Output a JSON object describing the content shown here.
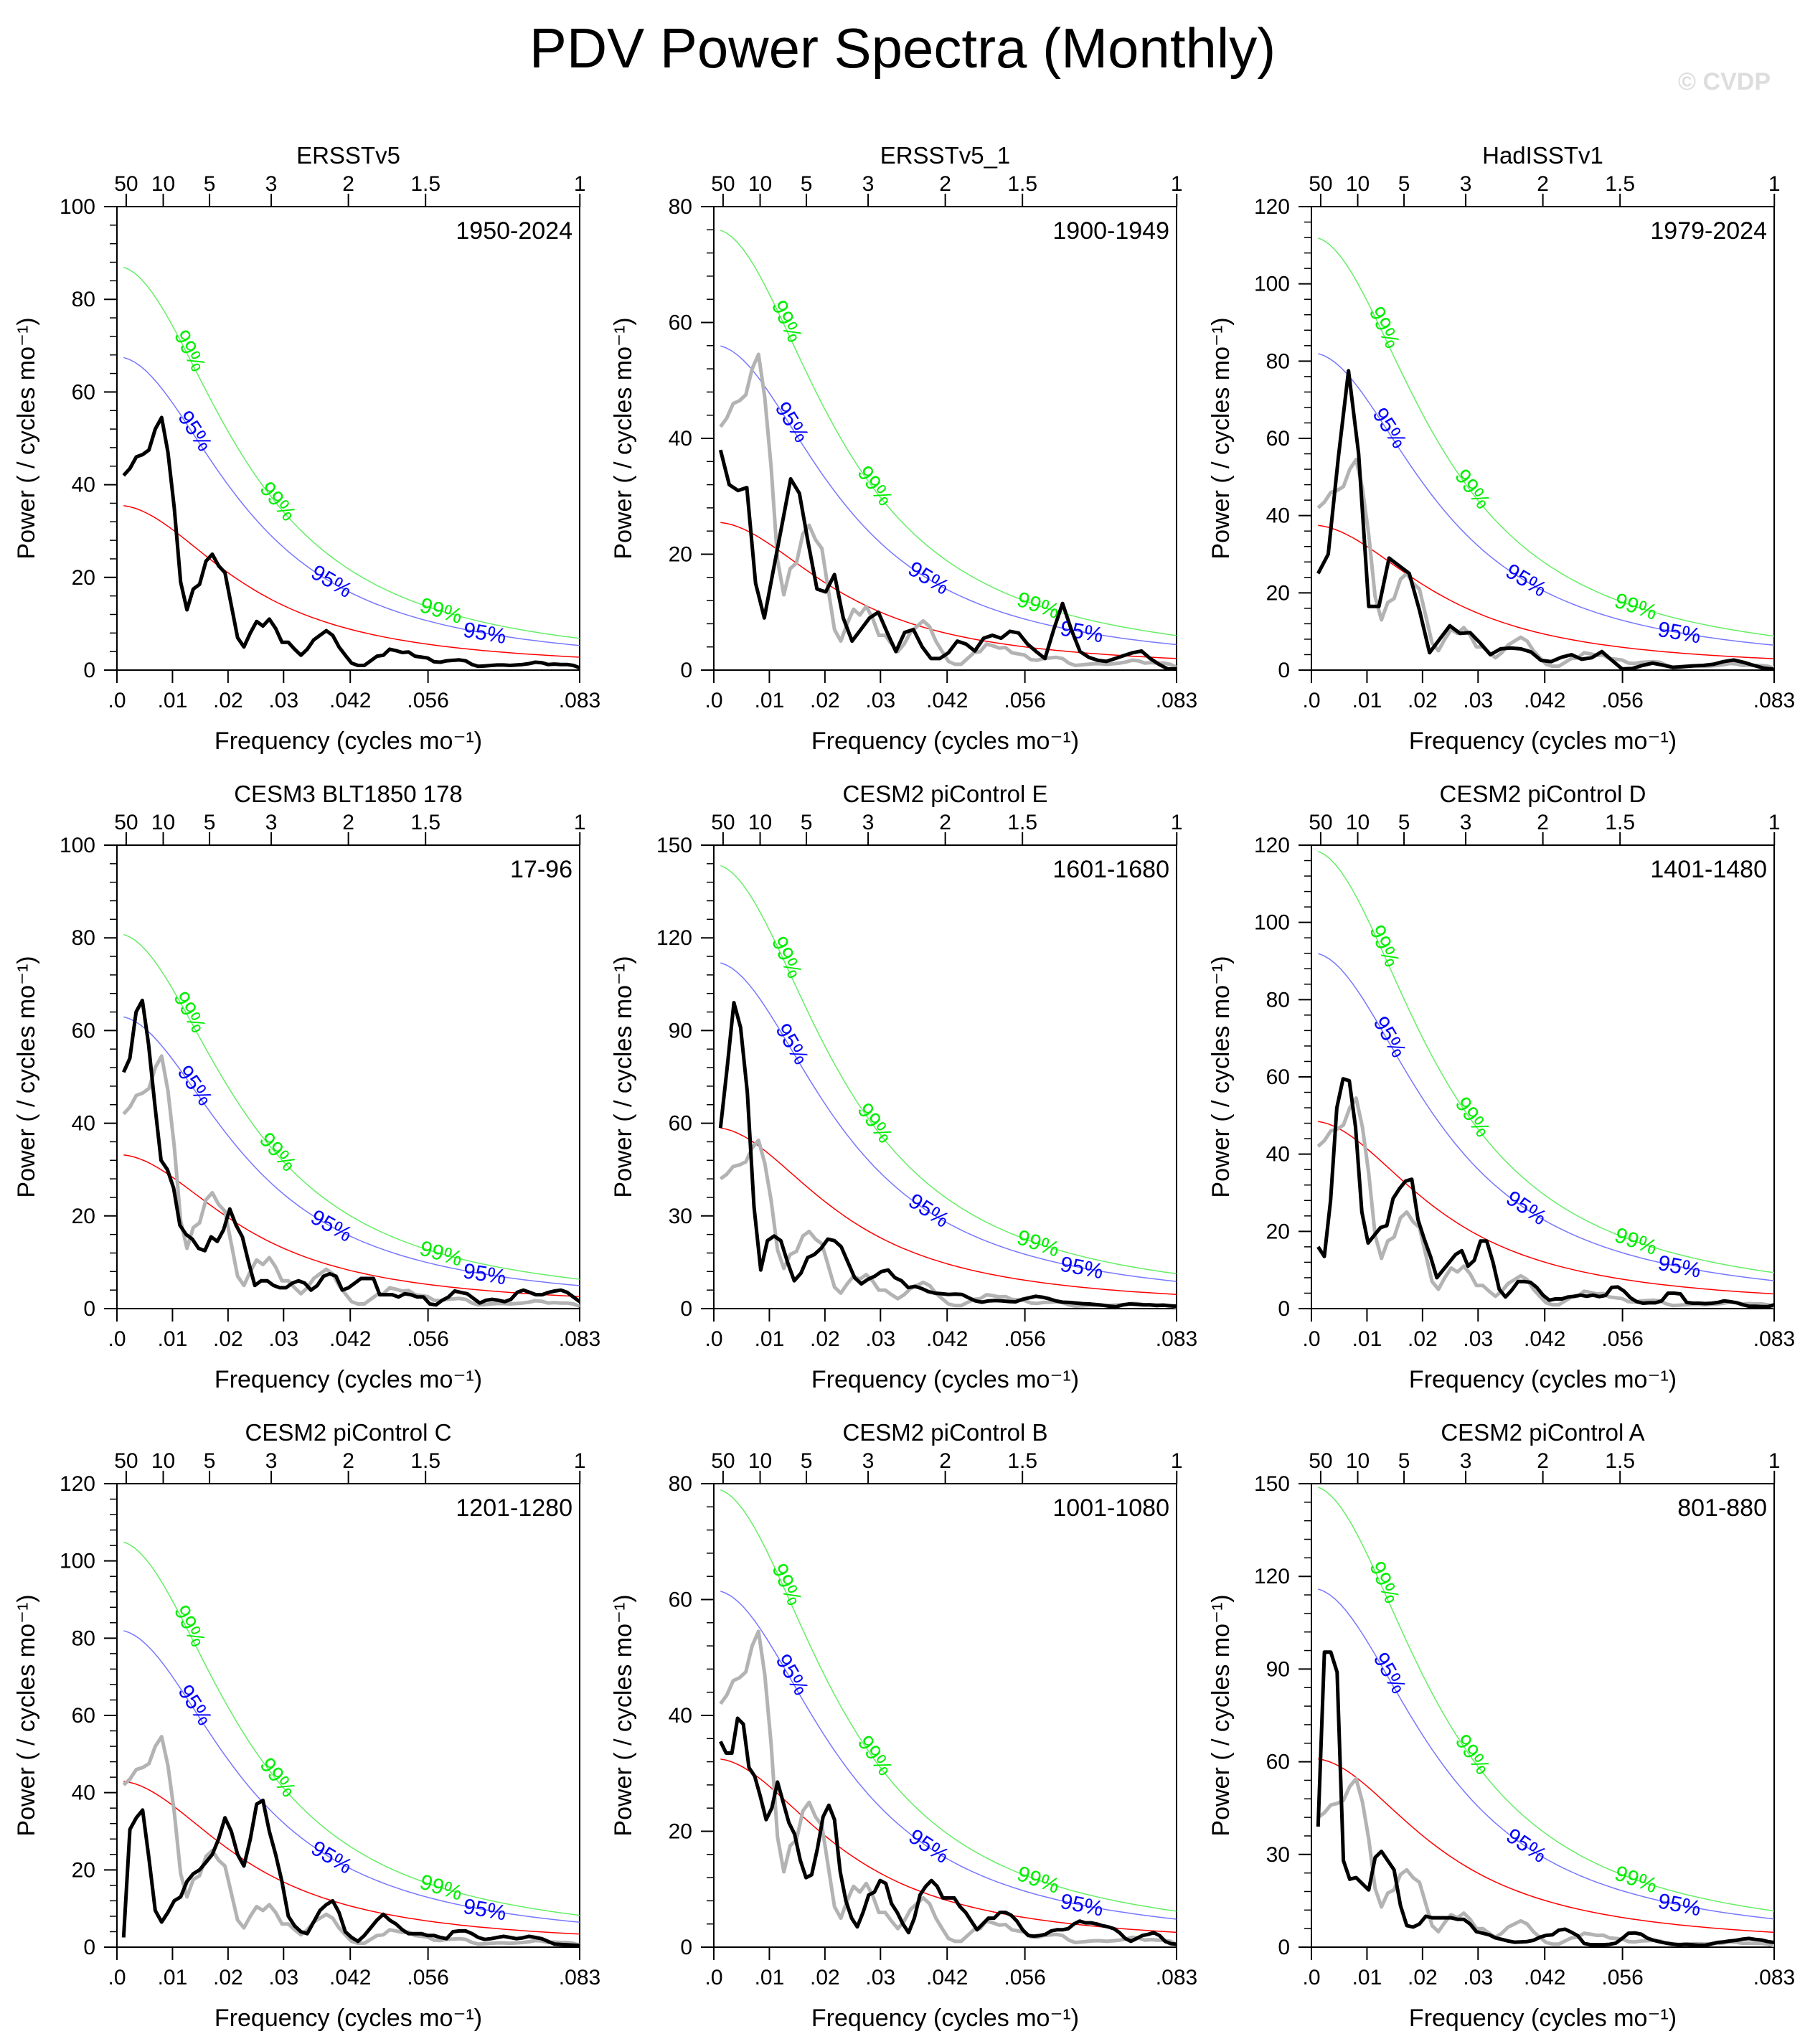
{
  "figure": {
    "title": "PDV Power Spectra (Monthly)",
    "watermark": "© CVDP",
    "colors": {
      "spectrum": "#000000",
      "reference_spectrum": "#b3b3b3",
      "red_noise": "#ff0000",
      "conf95": "#0000ff",
      "conf99": "#00ee00",
      "conf95_line": "#7777ff",
      "conf99_line": "#66ee66"
    }
  },
  "chart_data": [
    {
      "type": "line",
      "title": "ERSSTv5",
      "period": "1950-2024",
      "xlabel": "Frequency (cycles mo⁻¹)",
      "ylabel": "Power ( / cycles mo⁻¹)",
      "xlim": [
        0,
        0.0833
      ],
      "ylim": [
        0,
        100
      ],
      "yticks": [
        0,
        20,
        40,
        60,
        80,
        100
      ],
      "xticks": [
        ".0",
        ".01",
        ".02",
        ".03",
        ".042",
        ".056",
        ".083"
      ],
      "top_ticks": [
        "50",
        "10",
        "5",
        "3",
        "2",
        "1.5",
        "1"
      ],
      "red_noise_start": 35.5,
      "conf95_start": 67.5,
      "conf99_start": 87,
      "spectrum": [
        42,
        43.5,
        46,
        46.5,
        47.5,
        52,
        54.5,
        47,
        35,
        19,
        13,
        17.5,
        18.5,
        23.5,
        25,
        22.5,
        21,
        14,
        7,
        5,
        8,
        10.5,
        9.5,
        11,
        9,
        6,
        6,
        4.5,
        3.2,
        4.5,
        6.5,
        7.5,
        8.5,
        7.5,
        5,
        3.2,
        1.5,
        1.0,
        1.0,
        2.0,
        3.0,
        3.2,
        4.5,
        4.2,
        3.8,
        3.9,
        3.0,
        2.8,
        2.6,
        1.8,
        1.7,
        2.0,
        2.1,
        2.2,
        2.0,
        1.2,
        0.8,
        0.9,
        1.0,
        1.1,
        1.1,
        1.0,
        1.1,
        1.2,
        1.4,
        1.7,
        1.6,
        1.2,
        1.3,
        1.2,
        1.2,
        1.0,
        0.5
      ]
    },
    {
      "type": "line",
      "title": "ERSSTv5_1",
      "period": "1900-1949",
      "xlabel": "Frequency (cycles mo⁻¹)",
      "ylabel": "Power ( / cycles mo⁻¹)",
      "xlim": [
        0,
        0.0833
      ],
      "ylim": [
        0,
        80
      ],
      "yticks": [
        0,
        20,
        40,
        60,
        80
      ],
      "xticks": [
        ".0",
        ".01",
        ".02",
        ".03",
        ".042",
        ".056",
        ".083"
      ],
      "top_ticks": [
        "50",
        "10",
        "5",
        "3",
        "2",
        "1.5",
        "1"
      ],
      "red_noise_start": 25.5,
      "conf95_start": 56,
      "conf99_start": 76,
      "spectrum": [
        38,
        32,
        31,
        31.5,
        15,
        9,
        17,
        25,
        33,
        30.5,
        22,
        14,
        13.5,
        16.5,
        9,
        5,
        7,
        9,
        10,
        6.5,
        3.2,
        6.5,
        7,
        4,
        2,
        2,
        3,
        5,
        4.5,
        3.3,
        5.5,
        6,
        5.5,
        6.7,
        6.4,
        4.5,
        3.2,
        2,
        7,
        11.5,
        7,
        3.2,
        2.2,
        1.7,
        1.5,
        2,
        2.5,
        3,
        3.3,
        2,
        1,
        0.2,
        0.2
      ]
    },
    {
      "type": "line",
      "title": "HadISSTv1",
      "period": "1979-2024",
      "xlabel": "Frequency (cycles mo⁻¹)",
      "ylabel": "Power ( / cycles mo⁻¹)",
      "xlim": [
        0,
        0.0833
      ],
      "ylim": [
        0,
        120
      ],
      "yticks": [
        0,
        20,
        40,
        60,
        80,
        100,
        120
      ],
      "xticks": [
        ".0",
        ".01",
        ".02",
        ".03",
        ".042",
        ".056",
        ".083"
      ],
      "top_ticks": [
        "50",
        "10",
        "5",
        "3",
        "2",
        "1.5",
        "1"
      ],
      "red_noise_start": 37.5,
      "conf95_start": 82,
      "conf99_start": 112,
      "spectrum": [
        25,
        30,
        55,
        77.5,
        56,
        16.5,
        16.5,
        29,
        27,
        25,
        15.5,
        4.5,
        8,
        11.5,
        9.5,
        9.7,
        7,
        4,
        5.5,
        5.7,
        5.5,
        4.7,
        2.5,
        2.2,
        3.3,
        4,
        2.8,
        3.2,
        4.8,
        2.5,
        0.3,
        0.4,
        1.2,
        1.8,
        1.3,
        0.7,
        0.9,
        1.1,
        1.2,
        1.5,
        2.2,
        2.6,
        2.0,
        1.2,
        0.5,
        0.2
      ]
    },
    {
      "type": "line",
      "title": "CESM3 BLT1850 178",
      "period": "17-96",
      "xlabel": "Frequency (cycles mo⁻¹)",
      "ylabel": "Power ( / cycles mo⁻¹)",
      "xlim": [
        0,
        0.0833
      ],
      "ylim": [
        0,
        100
      ],
      "yticks": [
        0,
        20,
        40,
        60,
        80,
        100
      ],
      "xticks": [
        ".0",
        ".01",
        ".02",
        ".03",
        ".042",
        ".056",
        ".083"
      ],
      "top_ticks": [
        "50",
        "10",
        "5",
        "3",
        "2",
        "1.5",
        "1"
      ],
      "red_noise_start": 33.2,
      "conf95_start": 63,
      "conf99_start": 80.8,
      "spectrum": [
        51,
        54,
        64,
        66.5,
        57,
        44,
        32,
        30,
        26,
        18,
        16,
        15,
        13,
        12.5,
        15.5,
        14.5,
        17,
        21.5,
        18,
        15.5,
        10,
        5,
        6,
        6,
        5,
        4.5,
        4.5,
        5.5,
        6,
        5.5,
        4,
        5,
        7,
        7.5,
        7,
        4,
        4.5,
        5.5,
        6.5,
        6.5,
        6.5,
        3,
        3,
        3,
        2.5,
        3.2,
        3,
        2.5,
        2.5,
        1,
        0.8,
        1.8,
        2.5,
        3.8,
        3.5,
        3.2,
        2.2,
        1.2,
        1.8,
        2,
        1.8,
        1.5,
        2,
        3.5,
        4,
        3.5,
        3,
        3,
        3.5,
        3.8,
        4,
        3.5,
        2.5,
        1.5
      ]
    },
    {
      "type": "line",
      "title": "CESM2 piControl E",
      "period": "1601-1680",
      "xlabel": "Frequency (cycles mo⁻¹)",
      "ylabel": "Power ( / cycles mo⁻¹)",
      "xlim": [
        0,
        0.0833
      ],
      "ylim": [
        0,
        150
      ],
      "yticks": [
        0,
        30,
        60,
        90,
        120,
        150
      ],
      "xticks": [
        ".0",
        ".01",
        ".02",
        ".03",
        ".042",
        ".056",
        ".083"
      ],
      "top_ticks": [
        "50",
        "10",
        "5",
        "3",
        "2",
        "1.5",
        "1"
      ],
      "red_noise_start": 58.5,
      "conf95_start": 112,
      "conf99_start": 143.5,
      "spectrum": [
        58.5,
        78,
        99,
        91,
        70,
        33,
        12.5,
        22,
        23.5,
        22,
        15,
        9,
        11.5,
        16.5,
        17.5,
        19.5,
        22.5,
        22,
        20,
        15,
        10,
        8,
        9.5,
        10.5,
        12,
        12.5,
        10,
        9,
        6.8,
        7.2,
        6.5,
        5.5,
        5,
        4.8,
        4.6,
        4.7,
        4.6,
        3.5,
        2.5,
        2.1,
        2.5,
        2.6,
        2.5,
        2.3,
        2.2,
        3,
        3.5,
        4,
        3.7,
        3.2,
        2.5,
        2.1,
        2.0,
        1.8,
        1.6,
        1.5,
        1.3,
        1.1,
        0.8,
        0.6,
        1.2,
        1.5,
        1.4,
        1.2,
        1.2,
        1.0,
        1.1,
        0.9,
        0.8
      ]
    },
    {
      "type": "line",
      "title": "CESM2 piControl D",
      "period": "1401-1480",
      "xlabel": "Frequency (cycles mo⁻¹)",
      "ylabel": "Power ( / cycles mo⁻¹)",
      "xlim": [
        0,
        0.0833
      ],
      "ylim": [
        0,
        120
      ],
      "yticks": [
        0,
        20,
        40,
        60,
        80,
        100,
        120
      ],
      "xticks": [
        ".0",
        ".01",
        ".02",
        ".03",
        ".042",
        ".056",
        ".083"
      ],
      "top_ticks": [
        "50",
        "10",
        "5",
        "3",
        "2",
        "1.5",
        "1"
      ],
      "red_noise_start": 48.5,
      "conf95_start": 92,
      "conf99_start": 118.5,
      "spectrum": [
        16,
        13.5,
        28,
        52,
        59.5,
        59,
        47,
        25,
        17,
        19,
        21,
        21.5,
        28.5,
        31,
        33,
        33.5,
        23,
        18,
        13.5,
        8,
        10,
        12,
        14,
        15,
        11,
        12.5,
        17.5,
        17.5,
        12,
        5,
        3,
        4.8,
        7,
        7,
        6.8,
        5.5,
        3.5,
        2.2,
        2.5,
        2.5,
        3,
        3.2,
        3.5,
        3.2,
        3.5,
        3.1,
        3.4,
        5.5,
        5.6,
        4.5,
        2.8,
        1.8,
        1.4,
        1.5,
        1.5,
        2,
        4,
        4,
        3.8,
        1.6,
        1.4,
        1.4,
        1.3,
        1.4,
        1.6,
        2.0,
        1.8,
        1.5,
        1.0,
        0.6,
        0.6,
        0.5,
        0.5,
        1.0
      ]
    },
    {
      "type": "line",
      "title": "CESM2 piControl C",
      "period": "1201-1280",
      "xlabel": "Frequency (cycles mo⁻¹)",
      "ylabel": "Power ( / cycles mo⁻¹)",
      "xlim": [
        0,
        0.0833
      ],
      "ylim": [
        0,
        120
      ],
      "yticks": [
        0,
        20,
        40,
        60,
        80,
        100,
        120
      ],
      "xticks": [
        ".0",
        ".01",
        ".02",
        ".03",
        ".042",
        ".056",
        ".083"
      ],
      "top_ticks": [
        "50",
        "10",
        "5",
        "3",
        "2",
        "1.5",
        "1"
      ],
      "red_noise_start": 43,
      "conf95_start": 82,
      "conf99_start": 105,
      "spectrum": [
        2.5,
        30.5,
        33.5,
        35.5,
        23,
        9.5,
        6.5,
        9,
        12,
        13,
        17,
        19,
        20,
        22,
        24,
        28,
        33.5,
        30,
        24,
        21,
        28,
        37,
        38,
        30,
        24,
        17,
        8,
        5.5,
        4,
        3.5,
        6.5,
        9.5,
        11,
        12,
        9,
        4,
        2.5,
        1.5,
        3,
        5,
        7,
        8.5,
        7,
        6,
        4.5,
        3.5,
        3.5,
        3.5,
        3,
        3,
        2.5,
        2.2,
        4,
        4.2,
        4.2,
        3.5,
        2.5,
        2,
        2.2,
        2.5,
        2.8,
        2.5,
        2.2,
        2.4,
        2.8,
        2.5,
        2.2,
        1.5,
        0.8,
        0.7,
        0.6,
        0.5,
        0.4
      ]
    },
    {
      "type": "line",
      "title": "CESM2 piControl B",
      "period": "1001-1080",
      "xlabel": "Frequency (cycles mo⁻¹)",
      "ylabel": "Power ( / cycles mo⁻¹)",
      "xlim": [
        0,
        0.0833
      ],
      "ylim": [
        0,
        80
      ],
      "yticks": [
        0,
        20,
        40,
        60,
        80
      ],
      "xticks": [
        ".0",
        ".01",
        ".02",
        ".03",
        ".042",
        ".056",
        ".083"
      ],
      "top_ticks": [
        "50",
        "10",
        "5",
        "3",
        "2",
        "1.5",
        "1"
      ],
      "red_noise_start": 32.5,
      "conf95_start": 61.5,
      "conf99_start": 79,
      "spectrum": [
        35.5,
        33.5,
        33.5,
        39.5,
        38.5,
        31,
        29.5,
        26,
        22,
        24,
        28.5,
        25,
        21.5,
        19.5,
        15,
        12,
        12.5,
        17,
        22.5,
        24.5,
        22,
        13,
        8,
        5,
        3.5,
        6,
        9,
        9.5,
        11.5,
        11,
        7.5,
        6,
        4,
        2.5,
        5,
        9,
        10.5,
        11.5,
        10.5,
        8.5,
        8.5,
        8.5,
        7,
        6,
        4.5,
        3,
        4,
        5,
        5,
        6,
        6,
        5.5,
        4.5,
        3,
        2.0,
        1.9,
        2.0,
        2.2,
        2.8,
        3,
        3,
        3.2,
        4,
        4.5,
        4.2,
        4.2,
        4,
        3.7,
        3.5,
        3.2,
        2.5,
        1.5,
        1,
        1.5,
        2,
        2.2,
        2.5,
        2,
        1,
        0.6,
        0.5
      ]
    },
    {
      "type": "line",
      "title": "CESM2 piControl A",
      "period": "801-880",
      "xlabel": "Frequency (cycles mo⁻¹)",
      "ylabel": "Power ( / cycles mo⁻¹)",
      "xlim": [
        0,
        0.0833
      ],
      "ylim": [
        0,
        150
      ],
      "yticks": [
        0,
        30,
        60,
        90,
        120,
        150
      ],
      "xticks": [
        ".0",
        ".01",
        ".02",
        ".03",
        ".042",
        ".056",
        ".083"
      ],
      "top_ticks": [
        "50",
        "10",
        "5",
        "3",
        "2",
        "1.5",
        "1"
      ],
      "red_noise_start": 61,
      "conf95_start": 116,
      "conf99_start": 149,
      "spectrum": [
        39,
        95.5,
        95.5,
        89,
        28,
        22,
        22.5,
        20.5,
        18.5,
        29,
        31,
        28,
        25,
        13.5,
        7,
        6.5,
        7.5,
        10,
        9.5,
        9.5,
        9.5,
        9.5,
        9,
        9,
        7.5,
        5,
        4.5,
        4,
        3,
        2.5,
        2,
        1.6,
        1.7,
        1.8,
        2.2,
        3.2,
        3.8,
        4,
        5.5,
        5.8,
        4.8,
        3.7,
        1.2,
        0.8,
        0.8,
        0.8,
        0.9,
        1.3,
        2.8,
        4.5,
        4.6,
        4.2,
        2.9,
        2.2,
        1.7,
        1.3,
        1.0,
        0.8,
        0.9,
        0.8,
        0.6,
        0.6,
        1.0,
        1.5,
        1.7,
        2.0,
        2.2,
        2.6,
        2.8,
        2.5,
        2.3,
        1.8,
        1.5
      ]
    }
  ],
  "reference_spectrum": {
    "name": "ERSSTv5 (1950-2024) reference",
    "values": [
      42,
      43.5,
      46,
      46.5,
      47.5,
      52,
      54.5,
      47,
      35,
      19,
      13,
      17.5,
      18.5,
      23.5,
      25,
      22.5,
      21,
      14,
      7,
      5,
      8,
      10.5,
      9.5,
      11,
      9,
      6,
      6,
      4.5,
      3.2,
      4.5,
      6.5,
      7.5,
      8.5,
      7.5,
      5,
      3.2,
      1.5,
      1.0,
      1.0,
      2.0,
      3.0,
      3.2,
      4.5,
      4.2,
      3.8,
      3.9,
      3.0,
      2.8,
      2.6,
      1.8,
      1.7,
      2.0,
      2.1,
      2.2,
      2.0,
      1.2,
      0.8,
      0.9,
      1.0,
      1.1,
      1.1,
      1.0,
      1.1,
      1.2,
      1.4,
      1.7,
      1.6,
      1.2,
      1.3,
      1.2,
      1.2,
      1.0,
      0.5
    ]
  },
  "confidence_labels": {
    "c95": "95%",
    "c99": "99%"
  }
}
